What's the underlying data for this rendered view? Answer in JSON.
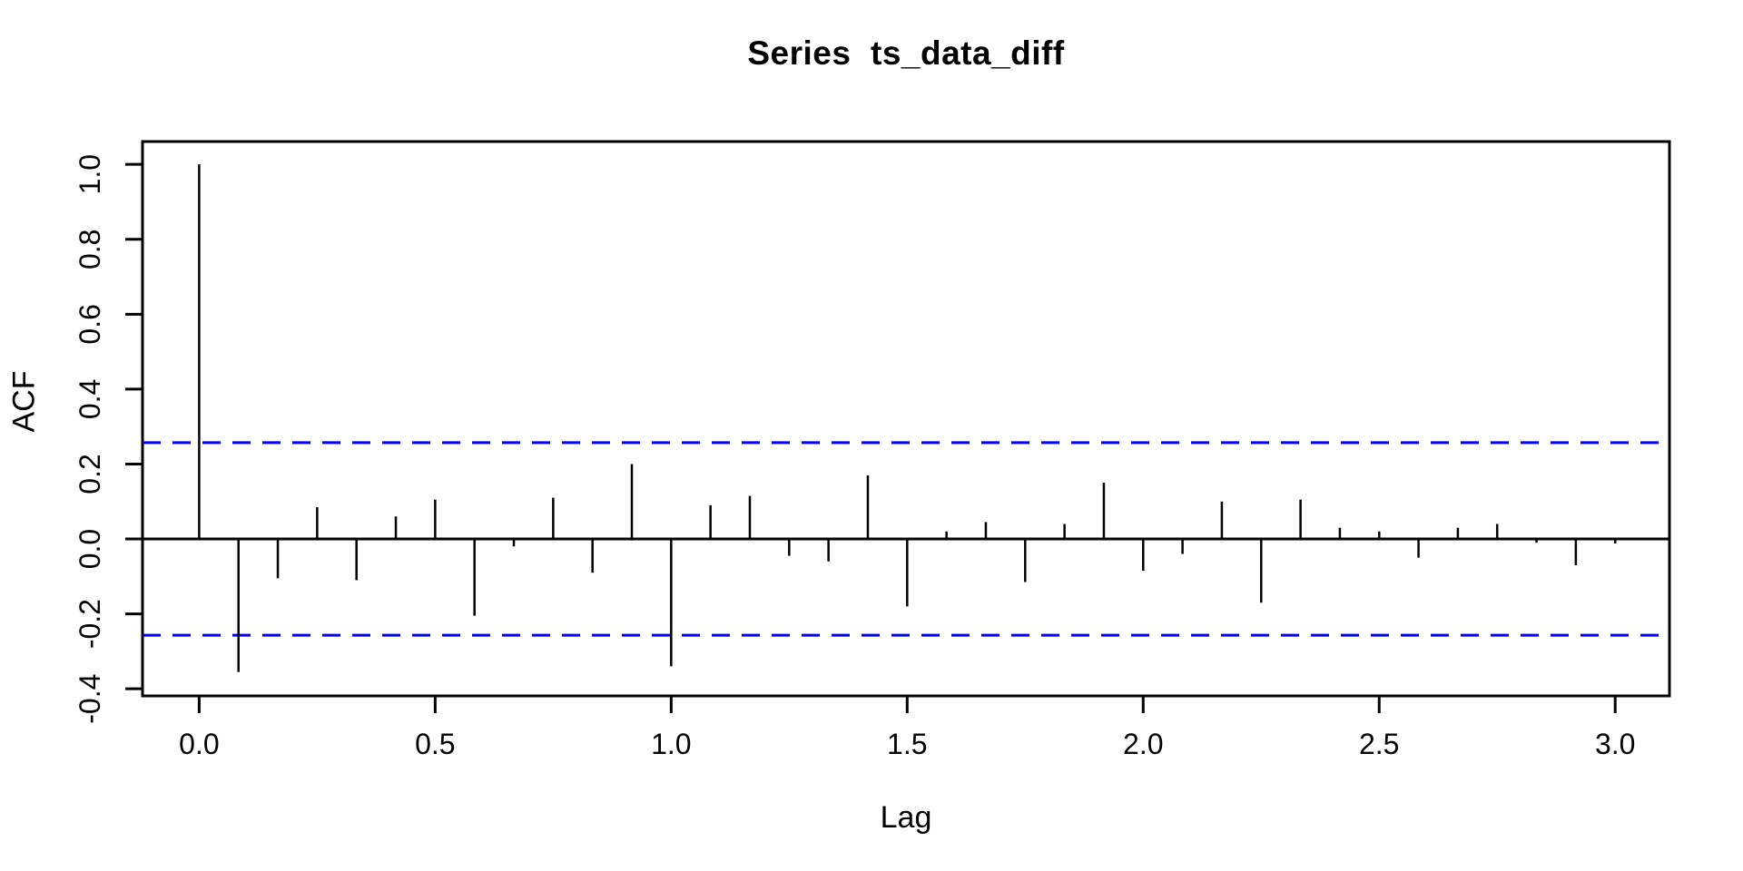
{
  "chart_data": {
    "type": "bar",
    "subtype": "acf-correlogram",
    "title": "Series  ts_data_diff",
    "series_name": "ts_data_diff",
    "xlabel": "Lag",
    "ylabel": "ACF",
    "grid": false,
    "legend": false,
    "background_color": "#ffffff",
    "bar_color": "#000000",
    "axis_color": "#000000",
    "confidence_bounds": {
      "upper": 0.257,
      "lower": -0.257,
      "line_style": "dashed",
      "color": "#0000ff"
    },
    "xlim": [
      -0.12,
      3.115
    ],
    "ylim": [
      -0.419,
      1.061
    ],
    "x_ticks": {
      "values": [
        0,
        0.5,
        1,
        1.5,
        2,
        2.5,
        3
      ],
      "labels": [
        "0.0",
        "0.5",
        "1.0",
        "1.5",
        "2.0",
        "2.5",
        "3.0"
      ]
    },
    "y_ticks": {
      "values": [
        -0.4,
        -0.2,
        0,
        0.2,
        0.4,
        0.6,
        0.8,
        1.0
      ],
      "labels": [
        "-0.4",
        "-0.2",
        "0.0",
        "0.2",
        "0.4",
        "0.6",
        "0.8",
        "1.0"
      ]
    },
    "lag_interval": 0.08333333,
    "acf_values": [
      1.0,
      -0.355,
      -0.105,
      0.085,
      -0.11,
      0.06,
      0.105,
      -0.205,
      -0.02,
      0.11,
      -0.09,
      0.2,
      -0.34,
      0.09,
      0.115,
      -0.045,
      -0.06,
      0.17,
      -0.18,
      0.02,
      0.045,
      -0.115,
      0.04,
      0.15,
      -0.085,
      -0.04,
      0.1,
      -0.17,
      0.105,
      0.03,
      0.02,
      -0.05,
      0.03,
      0.04,
      -0.01,
      -0.07,
      -0.012
    ]
  }
}
